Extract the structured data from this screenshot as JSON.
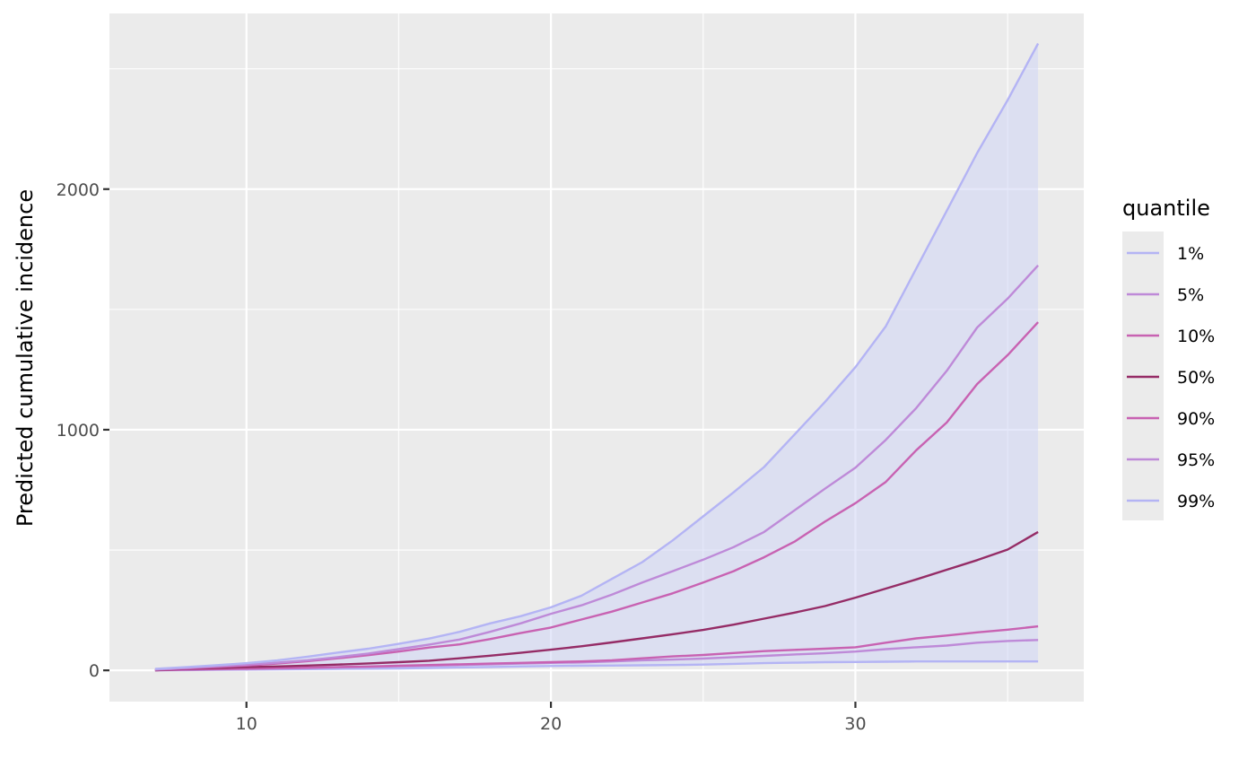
{
  "chart_data": {
    "type": "line",
    "title": "",
    "xlabel": "",
    "ylabel": "Predicted cumulative incidence",
    "xlim": [
      5.5,
      37.5
    ],
    "ylim": [
      -130,
      2730
    ],
    "x_ticks": [
      10,
      20,
      30
    ],
    "y_ticks": [
      0,
      1000,
      2000
    ],
    "grid": true,
    "legend": {
      "title": "quantile",
      "position": "right"
    },
    "band": {
      "lower_series": "1%",
      "upper_series": "99%",
      "color": "#d0d5f5"
    },
    "x": [
      7,
      8,
      9,
      10,
      11,
      12,
      13,
      14,
      15,
      16,
      17,
      18,
      19,
      20,
      21,
      22,
      23,
      24,
      25,
      26,
      27,
      28,
      29,
      30,
      31,
      32,
      33,
      34,
      35,
      36
    ],
    "series": [
      {
        "name": "1%",
        "color": "#b4b4f4",
        "values": [
          0,
          1,
          2,
          3,
          4,
          5,
          6,
          7,
          8,
          10,
          12,
          14,
          16,
          18,
          19,
          20,
          21,
          22,
          24,
          27,
          30,
          32,
          34,
          35,
          36,
          37,
          37,
          37,
          37,
          37
        ]
      },
      {
        "name": "5%",
        "color": "#be8ad8",
        "values": [
          0,
          2,
          4,
          6,
          8,
          10,
          12,
          14,
          17,
          19,
          22,
          25,
          28,
          31,
          33,
          37,
          42,
          45,
          49,
          55,
          60,
          66,
          71,
          78,
          88,
          96,
          103,
          115,
          122,
          126
        ]
      },
      {
        "name": "10%",
        "color": "#c862b2",
        "values": [
          0,
          3,
          5,
          7,
          9,
          11,
          14,
          16,
          19,
          22,
          25,
          28,
          31,
          34,
          37,
          42,
          50,
          58,
          64,
          72,
          80,
          85,
          90,
          96,
          115,
          133,
          145,
          158,
          169,
          183
        ]
      },
      {
        "name": "50%",
        "color": "#952c66",
        "values": [
          0,
          6,
          10,
          13,
          16,
          20,
          24,
          29,
          34,
          40,
          50,
          61,
          73,
          86,
          100,
          116,
          133,
          150,
          168,
          190,
          215,
          240,
          267,
          302,
          340,
          378,
          418,
          458,
          502,
          575
        ]
      },
      {
        "name": "90%",
        "color": "#c862b2",
        "values": [
          2,
          8,
          14,
          20,
          28,
          38,
          50,
          63,
          78,
          95,
          108,
          130,
          155,
          178,
          211,
          244,
          282,
          320,
          365,
          412,
          470,
          535,
          618,
          695,
          783,
          915,
          1030,
          1190,
          1310,
          1447
        ]
      },
      {
        "name": "95%",
        "color": "#be8ad8",
        "values": [
          3,
          10,
          17,
          24,
          32,
          42,
          55,
          70,
          88,
          107,
          128,
          160,
          195,
          235,
          270,
          315,
          365,
          412,
          460,
          512,
          575,
          665,
          755,
          842,
          958,
          1090,
          1245,
          1425,
          1545,
          1683
        ]
      },
      {
        "name": "99%",
        "color": "#b4b4f4",
        "values": [
          6,
          13,
          21,
          30,
          41,
          57,
          74,
          90,
          110,
          132,
          160,
          195,
          225,
          262,
          310,
          380,
          450,
          540,
          640,
          740,
          845,
          980,
          1115,
          1260,
          1430,
          1670,
          1910,
          2150,
          2370,
          2605
        ]
      }
    ]
  },
  "colors": {
    "panel_background": "#ebebeb",
    "grid_major": "#ffffff",
    "legend_key_background": "#ebebeb"
  }
}
